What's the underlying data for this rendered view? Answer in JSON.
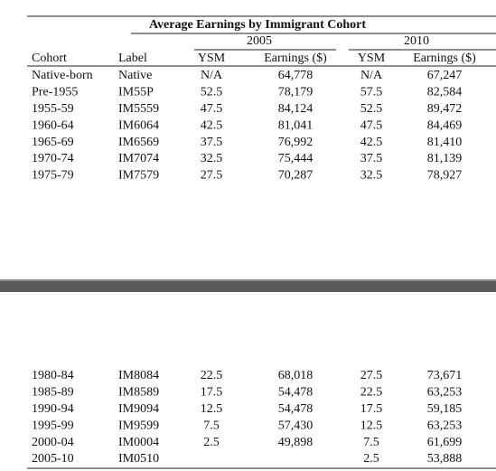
{
  "table": {
    "title": "Average Earnings by Immigrant Cohort",
    "year_headers": [
      "2005",
      "2010"
    ],
    "columns": [
      "Cohort",
      "Label",
      "YSM",
      "Earnings ($)",
      "YSM",
      "Earnings ($)"
    ],
    "sections": [
      {
        "rows": [
          [
            "Native-born",
            "Native",
            "N/A",
            "64,778",
            "N/A",
            "67,247"
          ],
          [
            "Pre-1955",
            "IM55P",
            "52.5",
            "78,179",
            "57.5",
            "82,584"
          ],
          [
            "1955-59",
            "IM5559",
            "47.5",
            "84,124",
            "52.5",
            "89,472"
          ],
          [
            "1960-64",
            "IM6064",
            "42.5",
            "81,041",
            "47.5",
            "84,469"
          ],
          [
            "1965-69",
            "IM6569",
            "37.5",
            "76,992",
            "42.5",
            "81,410"
          ],
          [
            "1970-74",
            "IM7074",
            "32.5",
            "75,444",
            "37.5",
            "81,139"
          ],
          [
            "1975-79",
            "IM7579",
            "27.5",
            "70,287",
            "32.5",
            "78,927"
          ]
        ]
      },
      {
        "rows": [
          [
            "1980-84",
            "IM8084",
            "22.5",
            "68,018",
            "27.5",
            "73,671"
          ],
          [
            "1985-89",
            "IM8589",
            "17.5",
            "54,478",
            "22.5",
            "63,253"
          ],
          [
            "1990-94",
            "IM9094",
            "12.5",
            "54,478",
            "17.5",
            "59,185"
          ],
          [
            "1995-99",
            "IM9599",
            "7.5",
            "57,430",
            "12.5",
            "63,253"
          ],
          [
            "2000-04",
            "IM0004",
            "2.5",
            "49,898",
            "7.5",
            "61,699"
          ],
          [
            "2005-10",
            "IM0510",
            null,
            null,
            "2.5",
            "53,888"
          ]
        ]
      }
    ]
  }
}
